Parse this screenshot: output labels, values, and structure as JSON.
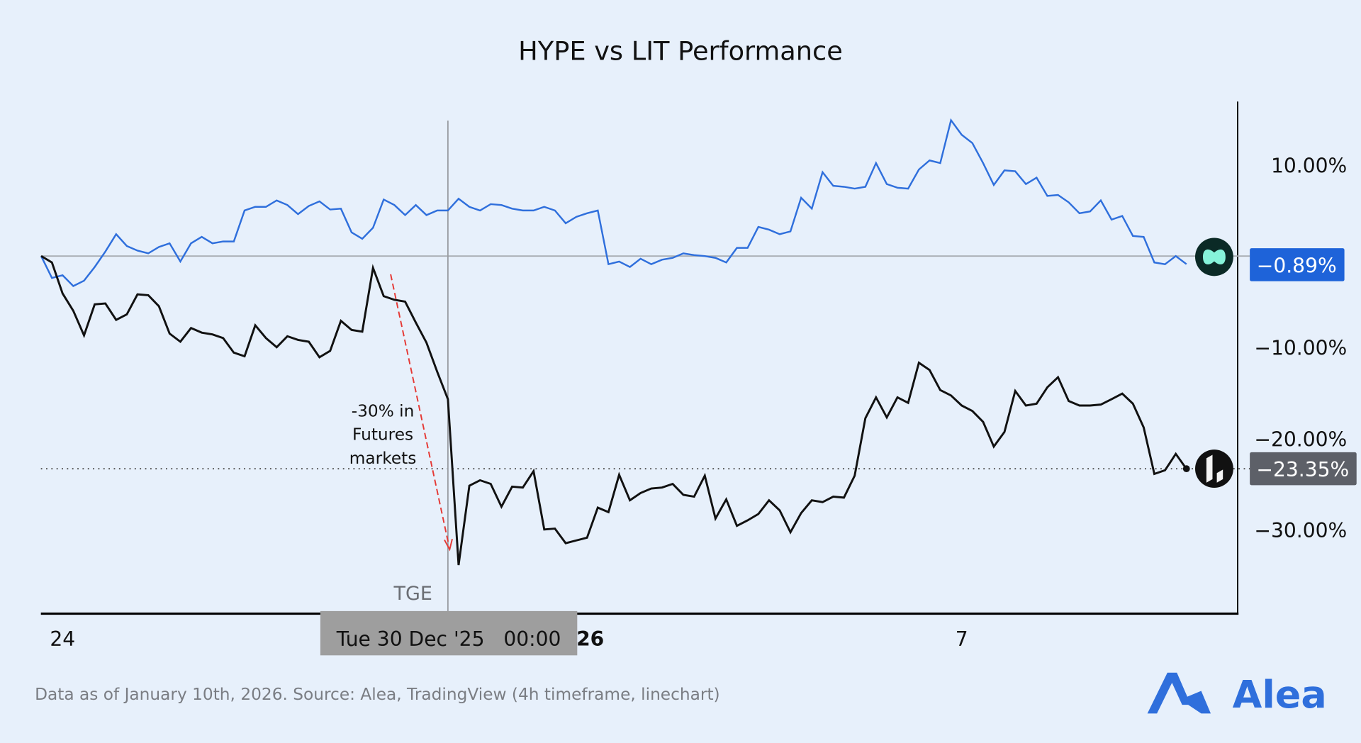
{
  "chart_data": {
    "type": "line",
    "title": "HYPE vs LIT Performance",
    "timeframe": "4h",
    "x_start": "2025-12-23T16:00:00Z",
    "x_ticks": [
      {
        "label": "24",
        "date": "2025-12-24T00:00:00Z",
        "bold": false
      },
      {
        "label": "26",
        "date": "2026-01-01T00:00:00Z",
        "bold": true
      },
      {
        "label": "7",
        "date": "2026-01-07T00:00:00Z",
        "bold": false
      }
    ],
    "y_ticks": [
      {
        "label": "10.00%",
        "value": 10
      },
      {
        "label": "−10.00%",
        "value": -10
      },
      {
        "label": "−20.00%",
        "value": -20
      },
      {
        "label": "−30.00%",
        "value": -30
      }
    ],
    "ylim": [
      -39,
      16
    ],
    "series": [
      {
        "id": "hype",
        "color": "#2f6fdc",
        "last_label": "−0.89%",
        "last_value": -0.89,
        "values": [
          0,
          -2.4,
          -2.1,
          -3.3,
          -2.7,
          -1.2,
          0.5,
          2.4,
          1.1,
          0.6,
          0.3,
          1.0,
          1.4,
          -0.6,
          1.4,
          2.1,
          1.4,
          1.6,
          1.6,
          5.0,
          5.4,
          5.4,
          6.1,
          5.6,
          4.6,
          5.5,
          6.0,
          5.1,
          5.2,
          2.6,
          1.9,
          3.1,
          6.2,
          5.6,
          4.5,
          5.6,
          4.5,
          5.0,
          5.0,
          6.3,
          5.4,
          5.0,
          5.7,
          5.6,
          5.2,
          5.0,
          5.0,
          5.4,
          5.0,
          3.6,
          4.3,
          4.7,
          5.0,
          -0.9,
          -0.6,
          -1.2,
          -0.3,
          -0.9,
          -0.4,
          -0.2,
          0.3,
          0.1,
          0,
          -0.2,
          -0.7,
          0.9,
          0.9,
          3.2,
          2.9,
          2.4,
          2.7,
          6.4,
          5.2,
          9.2,
          7.7,
          7.6,
          7.4,
          7.6,
          10.2,
          7.9,
          7.5,
          7.4,
          9.5,
          10.5,
          10.2,
          14.9,
          13.3,
          12.4,
          10.2,
          7.8,
          9.4,
          9.3,
          7.9,
          8.6,
          6.6,
          6.7,
          5.9,
          4.7,
          4.9,
          6.1,
          4.0,
          4.4,
          2.2,
          2.1,
          -0.7,
          -0.9,
          0,
          -0.89
        ]
      },
      {
        "id": "lit",
        "color": "#111111",
        "last_label": "−23.35%",
        "last_value": -23.35,
        "values": [
          0,
          -0.7,
          -4.1,
          -6.0,
          -8.7,
          -5.3,
          -5.2,
          -7.0,
          -6.4,
          -4.2,
          -4.3,
          -5.5,
          -8.5,
          -9.4,
          -7.9,
          -8.4,
          -8.6,
          -9.0,
          -10.6,
          -11.0,
          -7.6,
          -9.0,
          -10.0,
          -8.8,
          -9.2,
          -9.4,
          -11.1,
          -10.4,
          -7.1,
          -8.1,
          -8.3,
          -1.3,
          -4.4,
          -4.8,
          -5.0,
          -7.3,
          -9.5,
          -12.7,
          -15.7,
          -33.9,
          -25.2,
          -24.6,
          -25.0,
          -27.5,
          -25.3,
          -25.4,
          -23.6,
          -30.0,
          -29.9,
          -31.5,
          -31.2,
          -30.9,
          -27.6,
          -28.1,
          -24.0,
          -26.8,
          -26.0,
          -25.5,
          -25.4,
          -25.0,
          -26.2,
          -26.4,
          -24.1,
          -28.8,
          -26.7,
          -29.6,
          -29.0,
          -28.3,
          -26.8,
          -27.9,
          -30.3,
          -28.2,
          -26.8,
          -27.0,
          -26.4,
          -26.5,
          -24.1,
          -17.8,
          -15.5,
          -17.7,
          -15.5,
          -16.1,
          -11.7,
          -12.5,
          -14.7,
          -15.3,
          -16.4,
          -17.0,
          -18.2,
          -20.9,
          -19.3,
          -14.8,
          -16.4,
          -16.2,
          -14.4,
          -13.3,
          -15.9,
          -16.4,
          -16.4,
          -16.3,
          -15.7,
          -15.1,
          -16.2,
          -18.8,
          -23.9,
          -23.5,
          -21.7,
          -23.35
        ]
      }
    ],
    "event_marker": {
      "label": "TGE",
      "date": "2025-12-30T00:00:00Z",
      "crosshair_label": "Tue 30 Dec '25   00:00"
    },
    "annotation": {
      "lines": [
        "-30% in",
        "Futures",
        "markets"
      ],
      "arrow_color": "#e53935"
    },
    "grid": false,
    "legend": "none"
  },
  "footer": {
    "source": "Data as of January 10th, 2026. Source: Alea, TradingView (4h timeframe, linechart)",
    "brand": "Alea",
    "brand_color": "#2f6fdc"
  }
}
